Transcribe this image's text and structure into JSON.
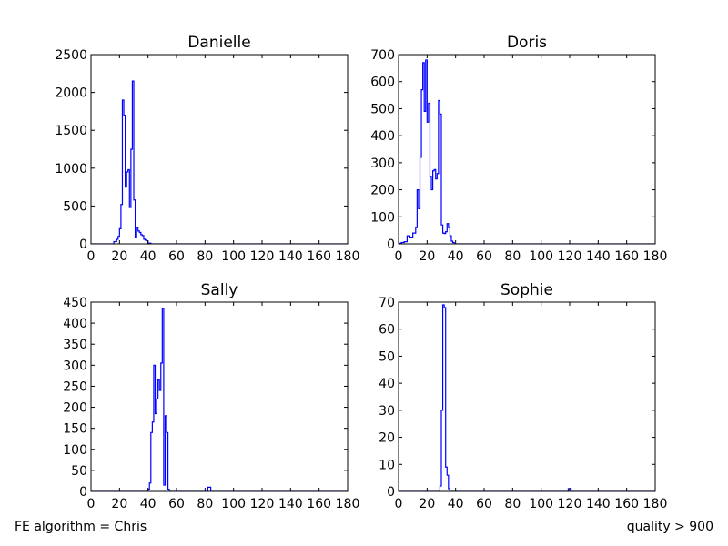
{
  "footer": {
    "left_note": "FE algorithm = Chris",
    "right_note": "quality > 900"
  },
  "colors": {
    "line": "#0000ff",
    "axes": "#000000",
    "background": "#ffffff"
  },
  "chart_data": [
    {
      "type": "line",
      "drawstyle": "steps",
      "title": "Danielle",
      "xlim": [
        0,
        180
      ],
      "ylim": [
        0,
        2500
      ],
      "xticks": [
        0,
        20,
        40,
        60,
        80,
        100,
        120,
        140,
        160,
        180
      ],
      "yticks": [
        0,
        500,
        1000,
        1500,
        2000,
        2500
      ],
      "x": [
        0,
        14,
        16,
        18,
        19,
        20,
        21,
        22,
        23,
        24,
        25,
        26,
        27,
        28,
        29,
        30,
        31,
        32,
        33,
        34,
        35,
        36,
        37,
        38,
        39,
        40,
        42,
        180
      ],
      "y": [
        0,
        0,
        30,
        60,
        100,
        200,
        520,
        1900,
        1700,
        750,
        950,
        980,
        480,
        1250,
        2150,
        580,
        80,
        220,
        170,
        150,
        120,
        110,
        60,
        50,
        40,
        10,
        0,
        0
      ]
    },
    {
      "type": "line",
      "drawstyle": "steps",
      "title": "Doris",
      "xlim": [
        0,
        180
      ],
      "ylim": [
        0,
        700
      ],
      "xticks": [
        0,
        20,
        40,
        60,
        80,
        100,
        120,
        140,
        160,
        180
      ],
      "yticks": [
        0,
        100,
        200,
        300,
        400,
        500,
        600,
        700
      ],
      "x": [
        0,
        2,
        4,
        6,
        8,
        10,
        12,
        13,
        14,
        15,
        16,
        17,
        18,
        19,
        20,
        21,
        22,
        23,
        24,
        25,
        26,
        27,
        28,
        29,
        30,
        31,
        32,
        33,
        34,
        35,
        36,
        37,
        38,
        39,
        40,
        42,
        180
      ],
      "y": [
        2,
        5,
        8,
        30,
        25,
        40,
        60,
        200,
        130,
        320,
        570,
        670,
        490,
        680,
        450,
        520,
        250,
        200,
        270,
        275,
        240,
        260,
        530,
        480,
        70,
        40,
        38,
        45,
        75,
        60,
        30,
        10,
        5,
        0,
        0,
        0,
        0
      ]
    },
    {
      "type": "line",
      "drawstyle": "steps",
      "title": "Sally",
      "xlim": [
        0,
        180
      ],
      "ylim": [
        0,
        450
      ],
      "xticks": [
        0,
        20,
        40,
        60,
        80,
        100,
        120,
        140,
        160,
        180
      ],
      "yticks": [
        0,
        50,
        100,
        150,
        200,
        250,
        300,
        350,
        400,
        450
      ],
      "x": [
        0,
        40,
        41,
        42,
        43,
        44,
        45,
        46,
        47,
        48,
        49,
        50,
        51,
        52,
        53,
        54,
        55,
        56,
        82,
        84,
        180
      ],
      "y": [
        0,
        5,
        20,
        140,
        165,
        300,
        185,
        220,
        265,
        240,
        305,
        435,
        15,
        180,
        140,
        5,
        0,
        0,
        10,
        0,
        0
      ]
    },
    {
      "type": "line",
      "drawstyle": "steps",
      "title": "Sophie",
      "xlim": [
        0,
        180
      ],
      "ylim": [
        0,
        70
      ],
      "xticks": [
        0,
        20,
        40,
        60,
        80,
        100,
        120,
        140,
        160,
        180
      ],
      "yticks": [
        0,
        10,
        20,
        30,
        40,
        50,
        60,
        70
      ],
      "x": [
        0,
        29,
        30,
        31,
        32,
        33,
        34,
        35,
        36,
        119,
        121,
        180
      ],
      "y": [
        0,
        2,
        30,
        69,
        68,
        9,
        6,
        1,
        0,
        1,
        0,
        0
      ]
    }
  ]
}
